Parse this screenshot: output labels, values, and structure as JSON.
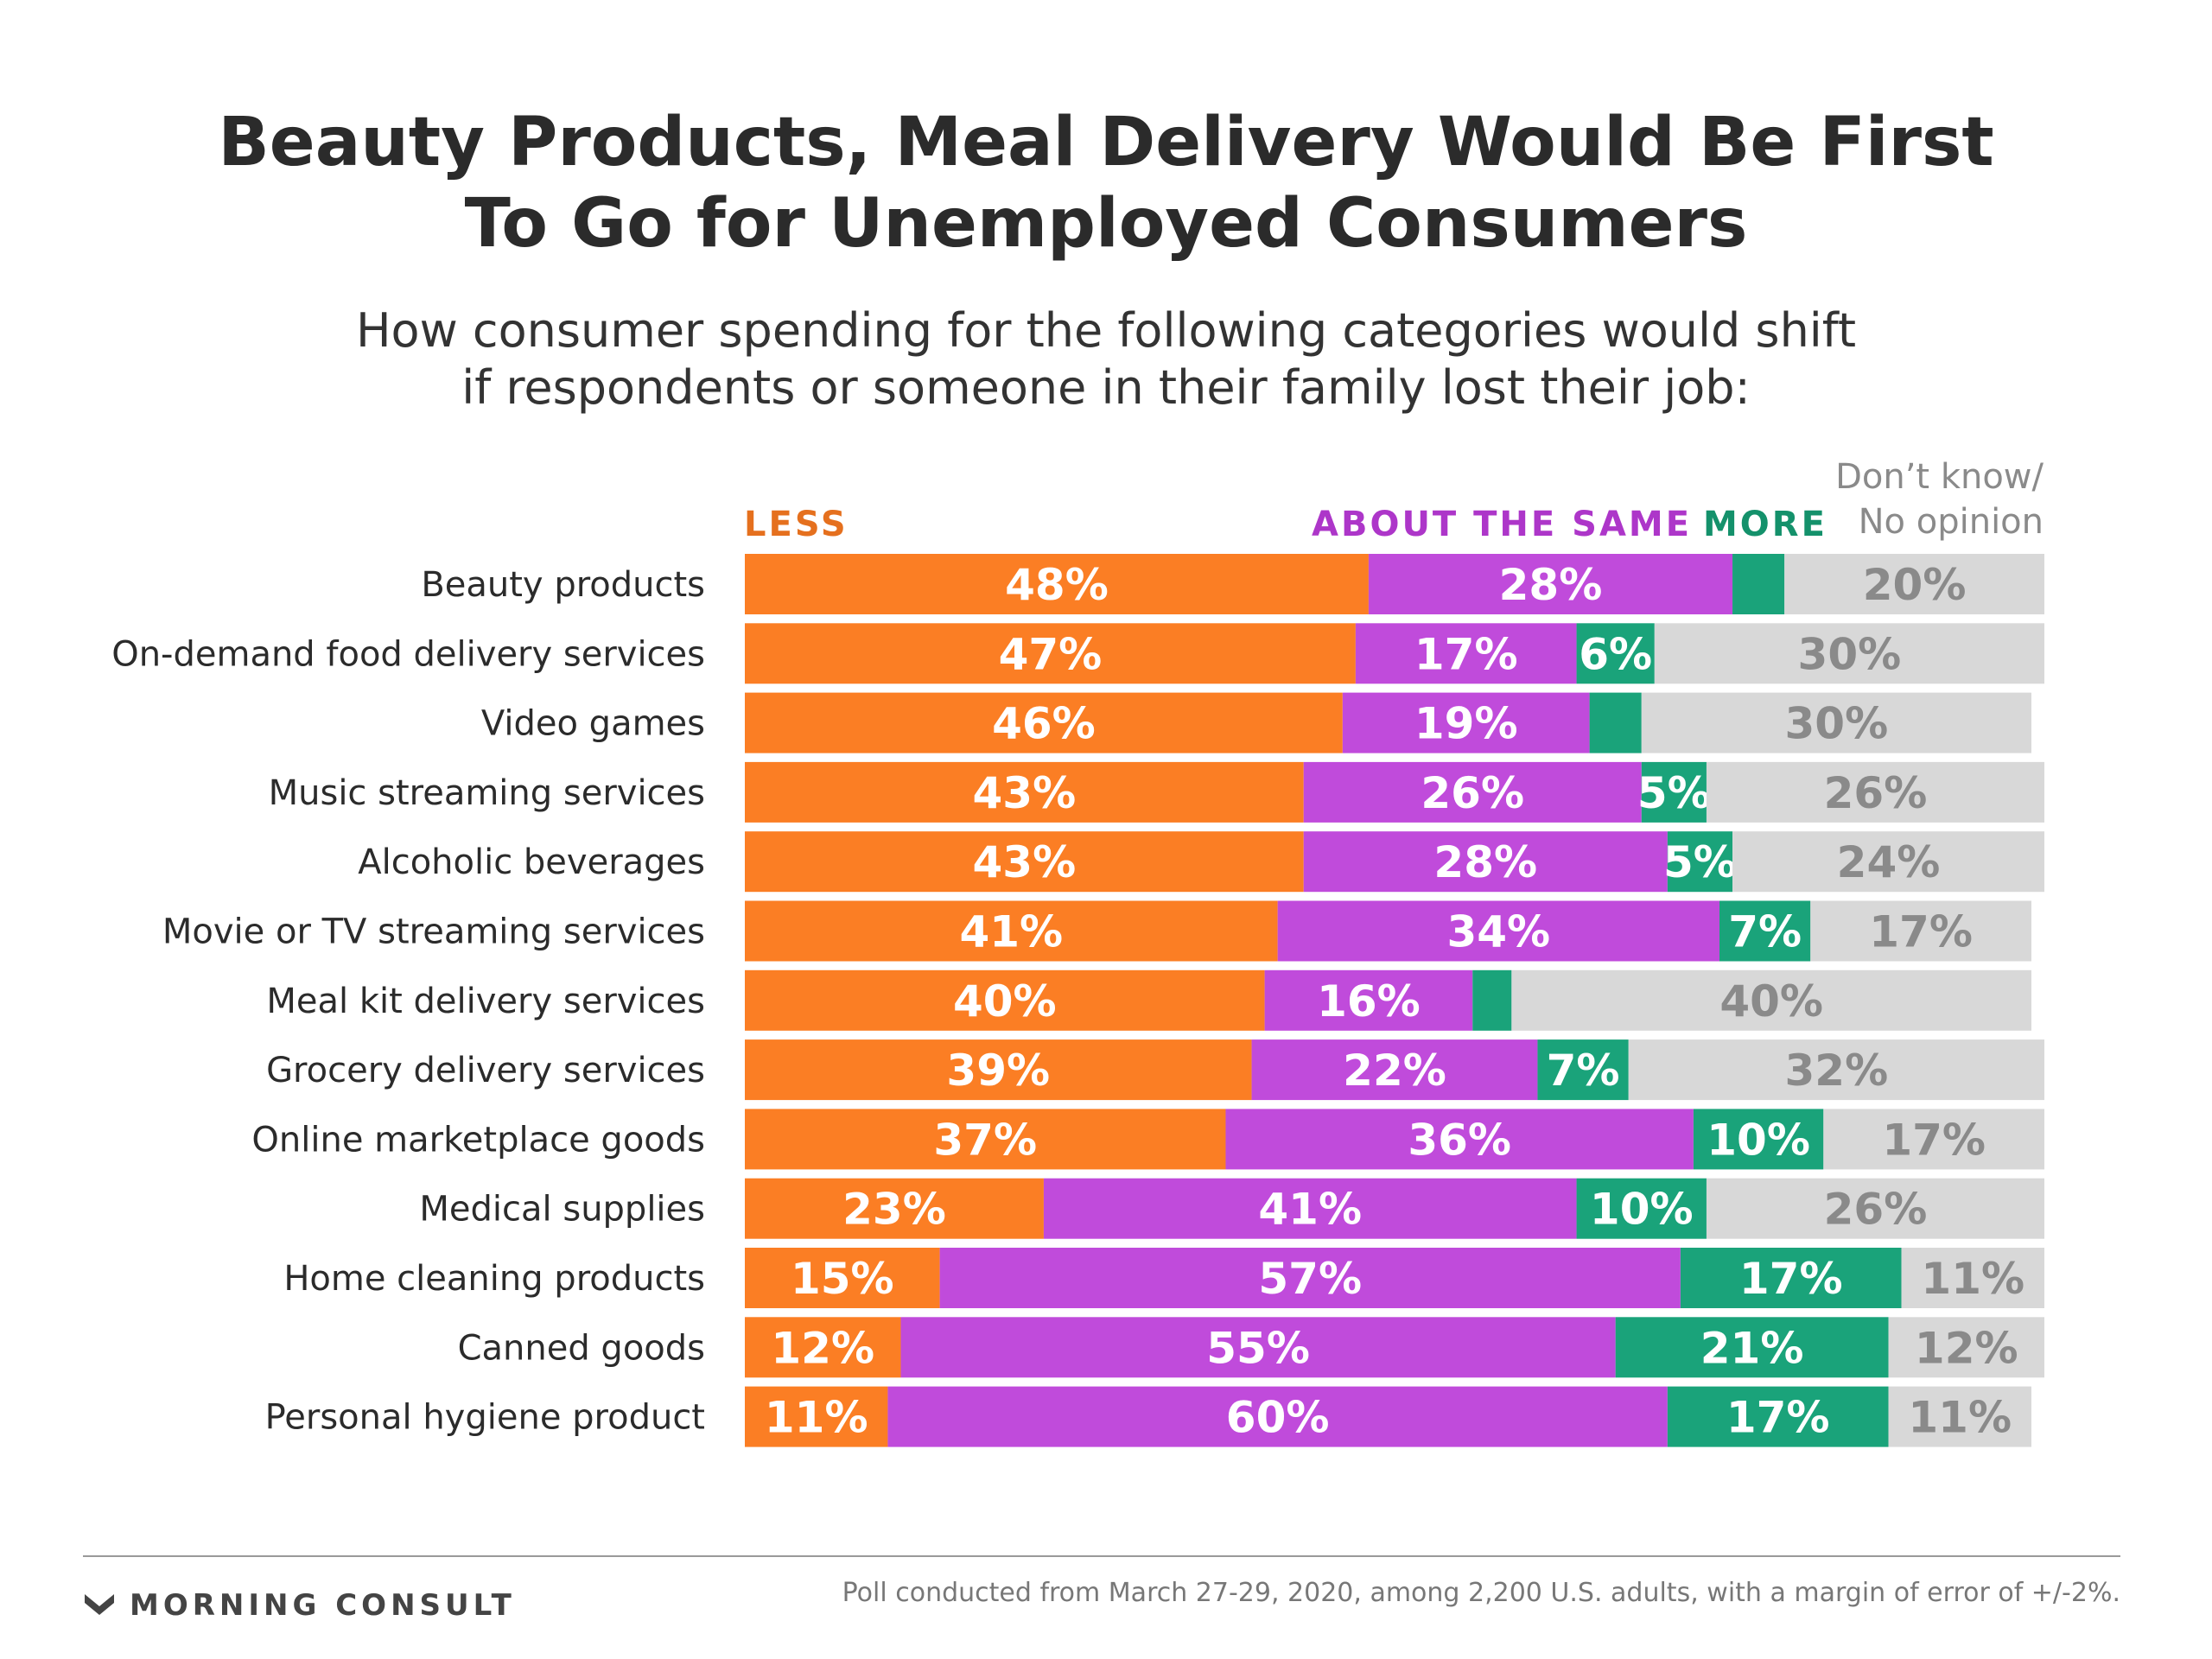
{
  "header": {
    "title_line1": "Beauty Products, Meal Delivery Would Be First",
    "title_line2": "To Go for Unemployed Consumers",
    "subtitle_line1": "How consumer spending for the following categories would shift",
    "subtitle_line2": "if respondents or someone in their family lost their job:"
  },
  "legend": {
    "less": "LESS",
    "same": "ABOUT THE SAME",
    "more": "MORE",
    "dk_line1": "Don’t know/",
    "dk_line2": "No opinion"
  },
  "colors": {
    "less": "#fb7e24",
    "same": "#c04bdb",
    "more": "#1aa37a",
    "dk": "#d8d8d8",
    "dk_text": "#8a8a8a"
  },
  "chart_data": {
    "type": "bar",
    "orientation": "horizontal",
    "stacked": true,
    "categories": [
      "Beauty products",
      "On-demand food delivery services",
      "Video games",
      "Music streaming services",
      "Alcoholic beverages",
      "Movie or TV streaming services",
      "Meal kit delivery services",
      "Grocery delivery services",
      "Online marketplace goods",
      "Medical supplies",
      "Home cleaning products",
      "Canned goods",
      "Personal hygiene product"
    ],
    "series": [
      {
        "name": "LESS",
        "values": [
          48,
          47,
          46,
          43,
          43,
          41,
          40,
          39,
          37,
          23,
          15,
          12,
          11
        ]
      },
      {
        "name": "ABOUT THE SAME",
        "values": [
          28,
          17,
          19,
          26,
          28,
          34,
          16,
          22,
          36,
          41,
          57,
          55,
          60
        ]
      },
      {
        "name": "MORE",
        "values": [
          4,
          6,
          4,
          5,
          5,
          7,
          3,
          7,
          10,
          10,
          17,
          21,
          17
        ]
      },
      {
        "name": "Don’t know/ No opinion",
        "values": [
          20,
          30,
          30,
          26,
          24,
          17,
          40,
          32,
          17,
          26,
          11,
          12,
          11
        ]
      }
    ],
    "labels": [
      [
        "48%",
        "28%",
        "",
        "20%"
      ],
      [
        "47%",
        "17%",
        "6%",
        "30%"
      ],
      [
        "46%",
        "19%",
        "",
        "30%"
      ],
      [
        "43%",
        "26%",
        "5%",
        "26%"
      ],
      [
        "43%",
        "28%",
        "5%",
        "24%"
      ],
      [
        "41%",
        "34%",
        "7%",
        "17%"
      ],
      [
        "40%",
        "16%",
        "",
        "40%"
      ],
      [
        "39%",
        "22%",
        "7%",
        "32%"
      ],
      [
        "37%",
        "36%",
        "10%",
        "17%"
      ],
      [
        "23%",
        "41%",
        "10%",
        "26%"
      ],
      [
        "15%",
        "57%",
        "17%",
        "11%"
      ],
      [
        "12%",
        "55%",
        "21%",
        "12%"
      ],
      [
        "11%",
        "60%",
        "17%",
        "11%"
      ]
    ],
    "xlim": [
      0,
      100
    ],
    "grid": false,
    "legend_position": "top"
  },
  "footer": {
    "brand": "MORNING CONSULT",
    "note": "Poll conducted from March 27-29, 2020, among 2,200 U.S. adults, with a margin of error of +/-2%."
  }
}
